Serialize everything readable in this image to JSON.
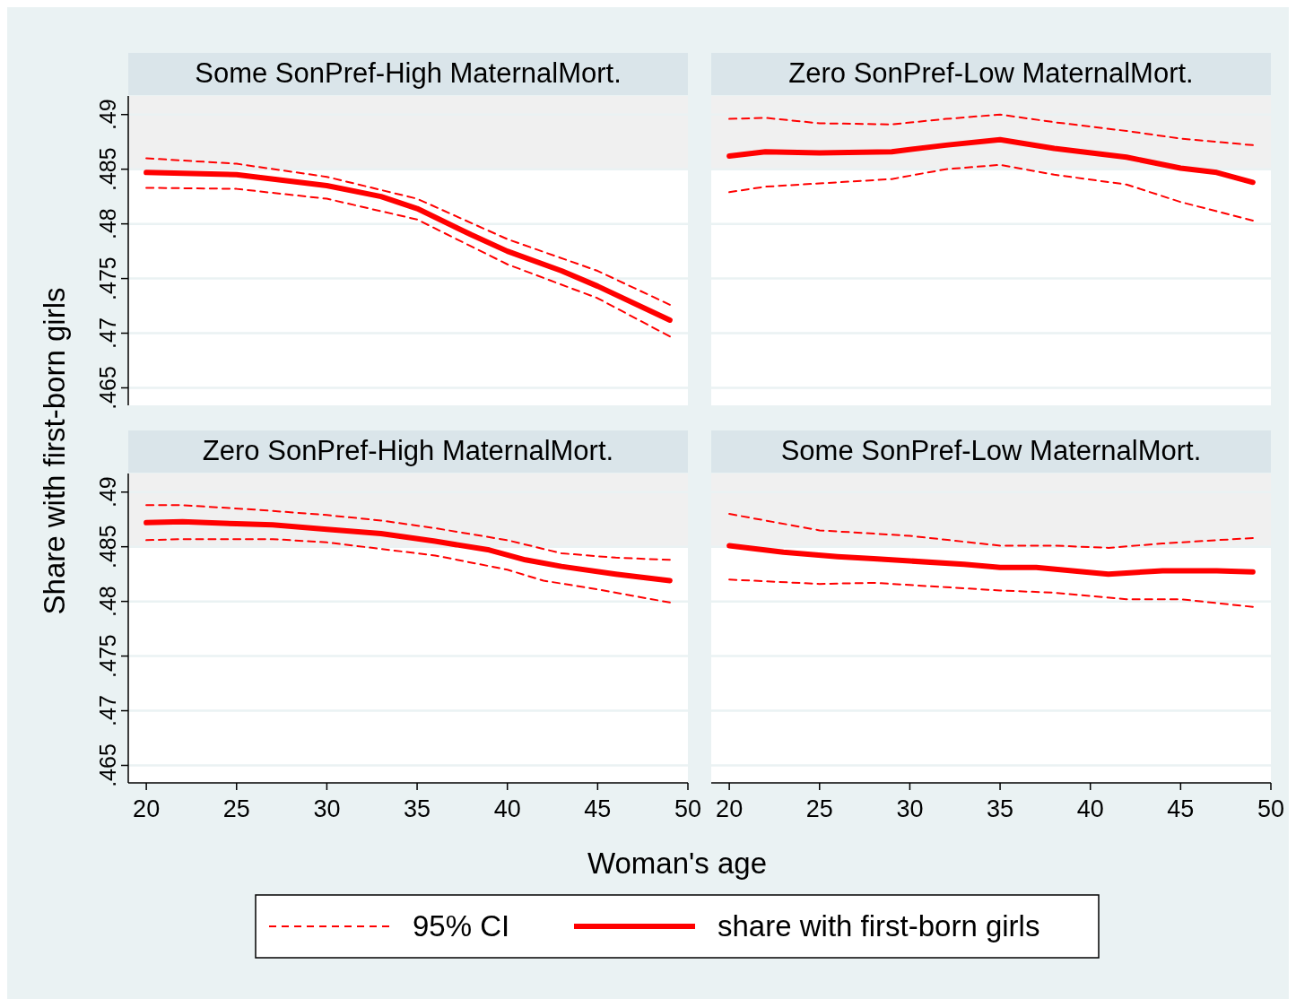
{
  "chart_data": [
    {
      "type": "line",
      "title": "Some SonPref-High MaternalMort.",
      "ylabel": "Share with first-born girls",
      "xlim": [
        19,
        50
      ],
      "ylim": [
        0.4634,
        0.4917
      ],
      "yticks": [
        {
          "value": 0.465,
          "label": ".465"
        },
        {
          "value": 0.47,
          "label": ".47"
        },
        {
          "value": 0.475,
          "label": ".475"
        },
        {
          "value": 0.48,
          "label": ".48"
        },
        {
          "value": 0.485,
          "label": ".485"
        },
        {
          "value": 0.49,
          "label": ".49"
        }
      ],
      "grid": "y",
      "legend": "bottom",
      "tick_labels": "y",
      "bands": [
        {
          "axis": "y",
          "from": 0.485,
          "to": 0.4917,
          "color": "#f0f0f0"
        }
      ],
      "series": [
        {
          "name": "95% CI",
          "color": "#ff0000",
          "line_style": "dashed",
          "x": [
            20,
            25,
            30,
            35,
            40,
            45,
            49
          ],
          "values": [
            0.486,
            0.4855,
            0.4843,
            0.4823,
            0.4786,
            0.4757,
            0.4726
          ]
        },
        {
          "color": "#ff0000",
          "line_style": "dashed",
          "x": [
            20,
            25,
            30,
            35,
            40,
            45,
            49
          ],
          "values": [
            0.4833,
            0.4832,
            0.4823,
            0.4804,
            0.4763,
            0.4732,
            0.4697
          ]
        },
        {
          "name": "share with first-born girls",
          "color": "#ff0000",
          "line_style": "solid",
          "x": [
            20,
            25,
            30,
            33,
            35,
            38,
            40,
            43,
            45,
            49
          ],
          "values": [
            0.4847,
            0.4845,
            0.4835,
            0.4825,
            0.4814,
            0.479,
            0.4775,
            0.4757,
            0.4743,
            0.4712
          ]
        }
      ]
    },
    {
      "type": "line",
      "title": "Zero SonPref-Low MaternalMort.",
      "xlim": [
        19,
        50
      ],
      "ylim": [
        0.4634,
        0.4917
      ],
      "yticks": [
        0.465,
        0.47,
        0.475,
        0.48,
        0.485,
        0.49
      ],
      "grid": "y",
      "tick_labels": false,
      "bands": [
        {
          "axis": "y",
          "from": 0.485,
          "to": 0.4917,
          "color": "#f0f0f0"
        }
      ],
      "series": [
        {
          "color": "#ff0000",
          "line_style": "dashed",
          "x": [
            20,
            22,
            25,
            29,
            32,
            35,
            38,
            42,
            45,
            49
          ],
          "values": [
            0.4896,
            0.4897,
            0.4892,
            0.4891,
            0.4896,
            0.49,
            0.4893,
            0.4885,
            0.4878,
            0.4872
          ]
        },
        {
          "color": "#ff0000",
          "line_style": "dashed",
          "x": [
            20,
            22,
            25,
            29,
            32,
            35,
            38,
            42,
            45,
            49
          ],
          "values": [
            0.4829,
            0.4834,
            0.4837,
            0.4841,
            0.485,
            0.4854,
            0.4845,
            0.4836,
            0.482,
            0.4803
          ]
        },
        {
          "color": "#ff0000",
          "line_style": "solid",
          "x": [
            20,
            22,
            25,
            29,
            32,
            35,
            38,
            42,
            45,
            47,
            49
          ],
          "values": [
            0.4862,
            0.4866,
            0.4865,
            0.4866,
            0.4872,
            0.4877,
            0.4869,
            0.4861,
            0.4851,
            0.4847,
            0.4838
          ]
        }
      ]
    },
    {
      "type": "line",
      "title": "Zero SonPref-High MaternalMort.",
      "xlabel": "Woman's age",
      "xlim": [
        19,
        50
      ],
      "ylim": [
        0.4634,
        0.4917
      ],
      "xticks": [
        20,
        25,
        30,
        35,
        40,
        45,
        50
      ],
      "yticks": [
        {
          "value": 0.465,
          "label": ".465"
        },
        {
          "value": 0.47,
          "label": ".47"
        },
        {
          "value": 0.475,
          "label": ".475"
        },
        {
          "value": 0.48,
          "label": ".48"
        },
        {
          "value": 0.485,
          "label": ".485"
        },
        {
          "value": 0.49,
          "label": ".49"
        }
      ],
      "grid": "y",
      "bands": [
        {
          "axis": "y",
          "from": 0.485,
          "to": 0.4917,
          "color": "#f0f0f0"
        }
      ],
      "series": [
        {
          "color": "#ff0000",
          "line_style": "dashed",
          "x": [
            20,
            22,
            26,
            30,
            33,
            36,
            40,
            43,
            46,
            49
          ],
          "values": [
            0.4888,
            0.4888,
            0.4884,
            0.4879,
            0.4874,
            0.4867,
            0.4856,
            0.4844,
            0.484,
            0.4838
          ]
        },
        {
          "color": "#ff0000",
          "line_style": "dashed",
          "x": [
            20,
            22,
            27,
            30,
            33,
            36,
            40,
            42,
            45,
            49
          ],
          "values": [
            0.4856,
            0.4857,
            0.4857,
            0.4854,
            0.4848,
            0.4842,
            0.4829,
            0.4819,
            0.4811,
            0.4799
          ]
        },
        {
          "color": "#ff0000",
          "line_style": "solid",
          "x": [
            20,
            22,
            25,
            27,
            30,
            33,
            36,
            39,
            41,
            43,
            46,
            49
          ],
          "values": [
            0.4872,
            0.4873,
            0.4871,
            0.487,
            0.4866,
            0.4862,
            0.4855,
            0.4847,
            0.4838,
            0.4832,
            0.4825,
            0.4819
          ]
        }
      ]
    },
    {
      "type": "line",
      "title": "Some SonPref-Low MaternalMort.",
      "xlim": [
        19,
        50
      ],
      "ylim": [
        0.4634,
        0.4917
      ],
      "xticks": [
        20,
        25,
        30,
        35,
        40,
        45,
        50
      ],
      "yticks": [
        0.465,
        0.47,
        0.475,
        0.48,
        0.485,
        0.49
      ],
      "grid": "y",
      "tick_labels": "x",
      "bands": [
        {
          "axis": "y",
          "from": 0.485,
          "to": 0.4917,
          "color": "#f0f0f0"
        }
      ],
      "series": [
        {
          "color": "#ff0000",
          "line_style": "dashed",
          "x": [
            20,
            25,
            30,
            35,
            38,
            41,
            44,
            49
          ],
          "values": [
            0.488,
            0.4865,
            0.486,
            0.4851,
            0.4851,
            0.4849,
            0.4853,
            0.4858
          ]
        },
        {
          "color": "#ff0000",
          "line_style": "dashed",
          "x": [
            20,
            25,
            28,
            32,
            35,
            38,
            42,
            45,
            49
          ],
          "values": [
            0.482,
            0.4816,
            0.4817,
            0.4813,
            0.481,
            0.4808,
            0.4802,
            0.4802,
            0.4795
          ]
        },
        {
          "color": "#ff0000",
          "line_style": "solid",
          "x": [
            20,
            23,
            26,
            28,
            30,
            33,
            35,
            37,
            39,
            41,
            44,
            47,
            49
          ],
          "values": [
            0.4851,
            0.4845,
            0.4841,
            0.4839,
            0.4837,
            0.4834,
            0.4831,
            0.4831,
            0.4828,
            0.4825,
            0.4828,
            0.4828,
            0.4827
          ]
        }
      ]
    }
  ]
}
